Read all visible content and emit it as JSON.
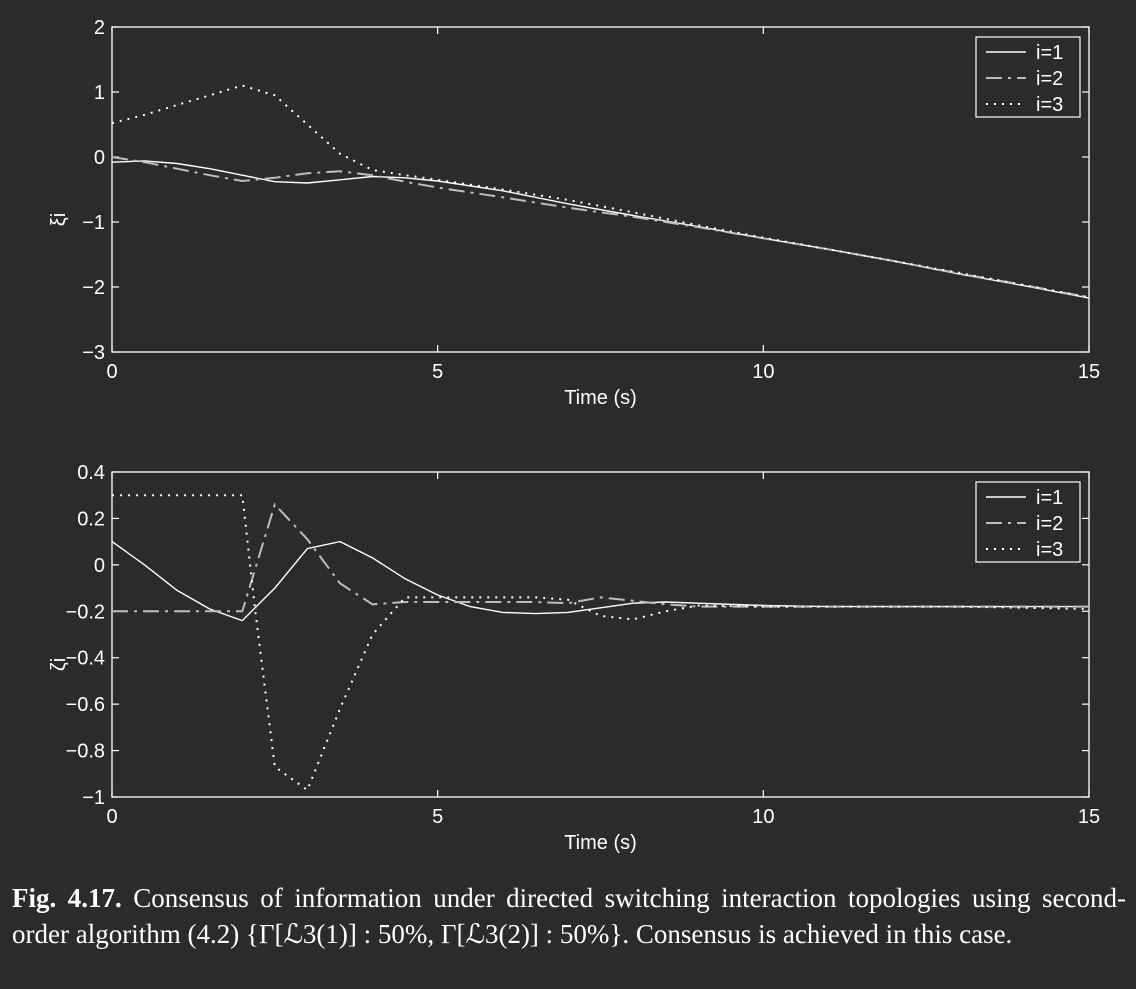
{
  "chart_data": [
    {
      "type": "line",
      "title": "",
      "xlabel": "Time (s)",
      "ylabel": "ξi",
      "xlim": [
        0,
        15
      ],
      "ylim": [
        -3,
        2
      ],
      "xticks": [
        "0",
        "5",
        "10",
        "15"
      ],
      "yticks": [
        "2",
        "1",
        "0",
        "−1",
        "−2",
        "−3"
      ],
      "legend_position": "top-right",
      "series": [
        {
          "name": "i=1",
          "style": "solid",
          "x": [
            0,
            0.5,
            1,
            1.5,
            2,
            2.5,
            3,
            3.5,
            4,
            4.5,
            5,
            6,
            7,
            8,
            9,
            10,
            11,
            12,
            13,
            14,
            15
          ],
          "y": [
            -0.08,
            -0.06,
            -0.1,
            -0.18,
            -0.28,
            -0.38,
            -0.4,
            -0.35,
            -0.3,
            -0.32,
            -0.37,
            -0.52,
            -0.72,
            -0.9,
            -1.07,
            -1.25,
            -1.42,
            -1.6,
            -1.8,
            -1.98,
            -2.17
          ]
        },
        {
          "name": "i=2",
          "style": "dashdot",
          "x": [
            0,
            0.5,
            1,
            1.5,
            2,
            2.5,
            3,
            3.5,
            4,
            4.5,
            5,
            6,
            7,
            8,
            9,
            10,
            11,
            12,
            13,
            14,
            15
          ],
          "y": [
            0.0,
            -0.08,
            -0.18,
            -0.28,
            -0.37,
            -0.32,
            -0.25,
            -0.22,
            -0.28,
            -0.38,
            -0.47,
            -0.62,
            -0.78,
            -0.92,
            -1.08,
            -1.25,
            -1.42,
            -1.6,
            -1.79,
            -1.97,
            -2.16
          ]
        },
        {
          "name": "i=3",
          "style": "dotted",
          "x": [
            0,
            0.5,
            1,
            1.5,
            2,
            2.5,
            3,
            3.5,
            4,
            4.5,
            5,
            6,
            7,
            8,
            9,
            10,
            11,
            12,
            13,
            14,
            15
          ],
          "y": [
            0.52,
            0.65,
            0.8,
            0.95,
            1.1,
            0.95,
            0.5,
            0.05,
            -0.2,
            -0.28,
            -0.35,
            -0.5,
            -0.66,
            -0.85,
            -1.05,
            -1.24,
            -1.42,
            -1.6,
            -1.78,
            -1.97,
            -2.16
          ]
        }
      ]
    },
    {
      "type": "line",
      "title": "",
      "xlabel": "Time (s)",
      "ylabel": "ζi",
      "xlim": [
        0,
        15
      ],
      "ylim": [
        -1,
        0.4
      ],
      "xticks": [
        "0",
        "5",
        "10",
        "15"
      ],
      "yticks": [
        "0.4",
        "0.2",
        "0",
        "−0.2",
        "−0.4",
        "−0.6",
        "−0.8",
        "−1"
      ],
      "legend_position": "top-right",
      "series": [
        {
          "name": "i=1",
          "style": "solid",
          "x": [
            0,
            0.5,
            1,
            1.5,
            2,
            2.5,
            3,
            3.5,
            4,
            4.5,
            5,
            5.5,
            6,
            6.5,
            7,
            7.5,
            8,
            8.5,
            9,
            10,
            11,
            12,
            13,
            14,
            15
          ],
          "y": [
            0.1,
            0.0,
            -0.11,
            -0.19,
            -0.24,
            -0.1,
            0.07,
            0.1,
            0.03,
            -0.06,
            -0.13,
            -0.18,
            -0.205,
            -0.21,
            -0.205,
            -0.185,
            -0.165,
            -0.16,
            -0.165,
            -0.175,
            -0.18,
            -0.18,
            -0.18,
            -0.18,
            -0.18
          ]
        },
        {
          "name": "i=2",
          "style": "dashdot",
          "x": [
            0,
            0.5,
            1,
            1.5,
            2,
            2.5,
            3,
            3.5,
            4,
            4.5,
            5,
            5.5,
            6,
            6.5,
            7,
            7.5,
            8,
            8.5,
            9,
            10,
            11,
            12,
            13,
            14,
            15
          ],
          "y": [
            -0.2,
            -0.2,
            -0.2,
            -0.2,
            -0.2,
            0.26,
            0.11,
            -0.08,
            -0.17,
            -0.16,
            -0.16,
            -0.16,
            -0.16,
            -0.16,
            -0.165,
            -0.14,
            -0.155,
            -0.17,
            -0.18,
            -0.18,
            -0.18,
            -0.18,
            -0.18,
            -0.18,
            -0.18
          ]
        },
        {
          "name": "i=3",
          "style": "dotted",
          "x": [
            0,
            0.5,
            1,
            1.5,
            2,
            2.2,
            2.5,
            3,
            3.5,
            4,
            4.5,
            5,
            5.5,
            6,
            6.5,
            7,
            7.5,
            8,
            8.5,
            9,
            10,
            11,
            12,
            13,
            14,
            15
          ],
          "y": [
            0.3,
            0.3,
            0.3,
            0.3,
            0.3,
            -0.2,
            -0.87,
            -0.97,
            -0.62,
            -0.3,
            -0.14,
            -0.14,
            -0.14,
            -0.14,
            -0.14,
            -0.15,
            -0.22,
            -0.235,
            -0.2,
            -0.175,
            -0.18,
            -0.18,
            -0.18,
            -0.18,
            -0.185,
            -0.19
          ]
        }
      ]
    }
  ],
  "caption": {
    "label": "Fig. 4.17.",
    "text": " Consensus of information under directed switching interaction topologies using second-order algorithm (4.2) {Γ[ℒ3(1)] : 50%, Γ[ℒ3(2)] : 50%}. Consensus is achieved in this case."
  }
}
